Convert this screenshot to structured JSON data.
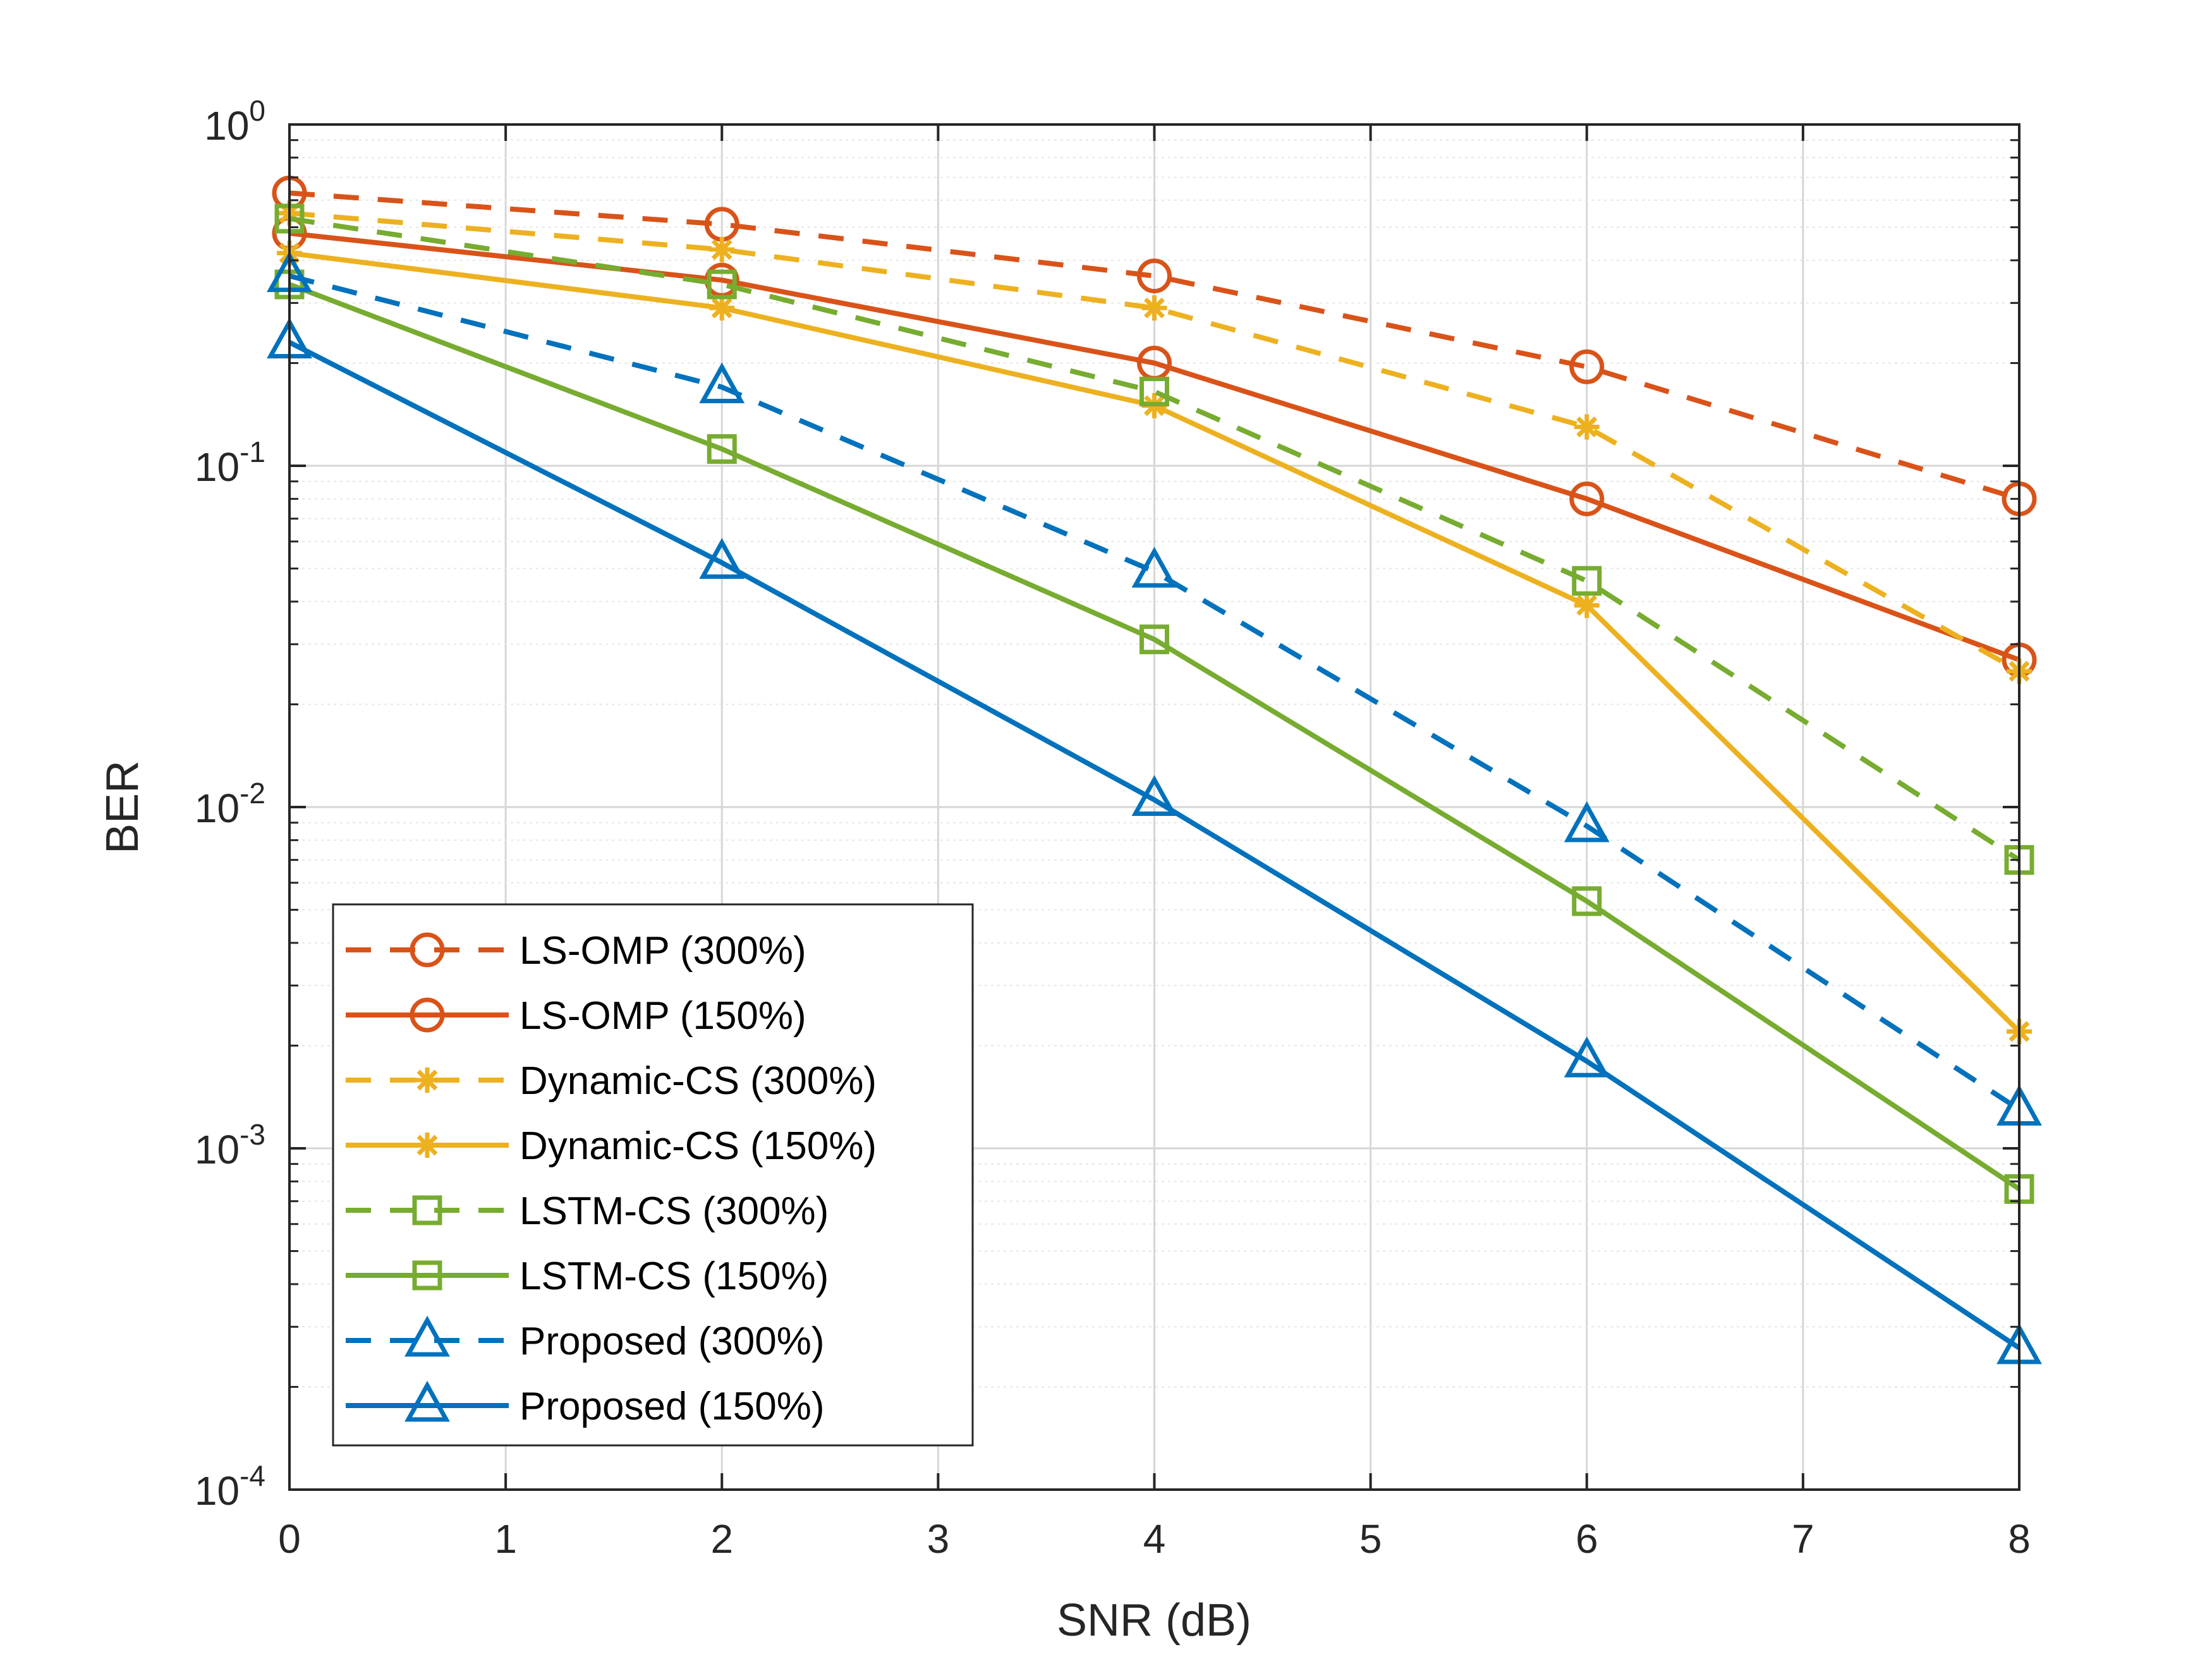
{
  "chart_data": {
    "type": "line",
    "title": "",
    "xlabel": "SNR (dB)",
    "ylabel": "BER",
    "yscale": "log",
    "xlim": [
      0,
      8
    ],
    "ylim": [
      0.0001,
      1
    ],
    "grid": true,
    "legend_position": "bottom-left",
    "x_ticks": [
      "0",
      "1",
      "2",
      "3",
      "4",
      "5",
      "6",
      "7",
      "8"
    ],
    "y_ticks": [
      {
        "base": "10",
        "exp": "0"
      },
      {
        "base": "10",
        "exp": "-1"
      },
      {
        "base": "10",
        "exp": "-2"
      },
      {
        "base": "10",
        "exp": "-3"
      },
      {
        "base": "10",
        "exp": "-4"
      }
    ],
    "x": [
      0,
      2,
      4,
      6,
      8
    ],
    "series": [
      {
        "name": "LS-OMP (300%)",
        "color": "#D95319",
        "dash": "dashed",
        "marker": "circle",
        "values": [
          0.63,
          0.51,
          0.36,
          0.195,
          0.08
        ]
      },
      {
        "name": "LS-OMP (150%)",
        "color": "#D95319",
        "dash": "solid",
        "marker": "circle",
        "values": [
          0.48,
          0.35,
          0.2,
          0.08,
          0.027
        ]
      },
      {
        "name": "Dynamic-CS (300%)",
        "color": "#EDB120",
        "dash": "dashed",
        "marker": "asterisk",
        "values": [
          0.55,
          0.43,
          0.29,
          0.13,
          0.025
        ]
      },
      {
        "name": "Dynamic-CS (150%)",
        "color": "#EDB120",
        "dash": "solid",
        "marker": "asterisk",
        "values": [
          0.42,
          0.29,
          0.15,
          0.039,
          0.0022
        ]
      },
      {
        "name": "LSTM-CS (300%)",
        "color": "#77AC30",
        "dash": "dashed",
        "marker": "square",
        "values": [
          0.53,
          0.34,
          0.165,
          0.046,
          0.007
        ]
      },
      {
        "name": "LSTM-CS (150%)",
        "color": "#77AC30",
        "dash": "solid",
        "marker": "square",
        "values": [
          0.34,
          0.112,
          0.031,
          0.0053,
          0.00076
        ]
      },
      {
        "name": "Proposed (300%)",
        "color": "#0072BD",
        "dash": "dashed",
        "marker": "triangle",
        "values": [
          0.36,
          0.17,
          0.049,
          0.0088,
          0.0013
        ]
      },
      {
        "name": "Proposed (150%)",
        "color": "#0072BD",
        "dash": "solid",
        "marker": "triangle",
        "values": [
          0.23,
          0.052,
          0.0105,
          0.0018,
          0.00026
        ]
      }
    ]
  }
}
